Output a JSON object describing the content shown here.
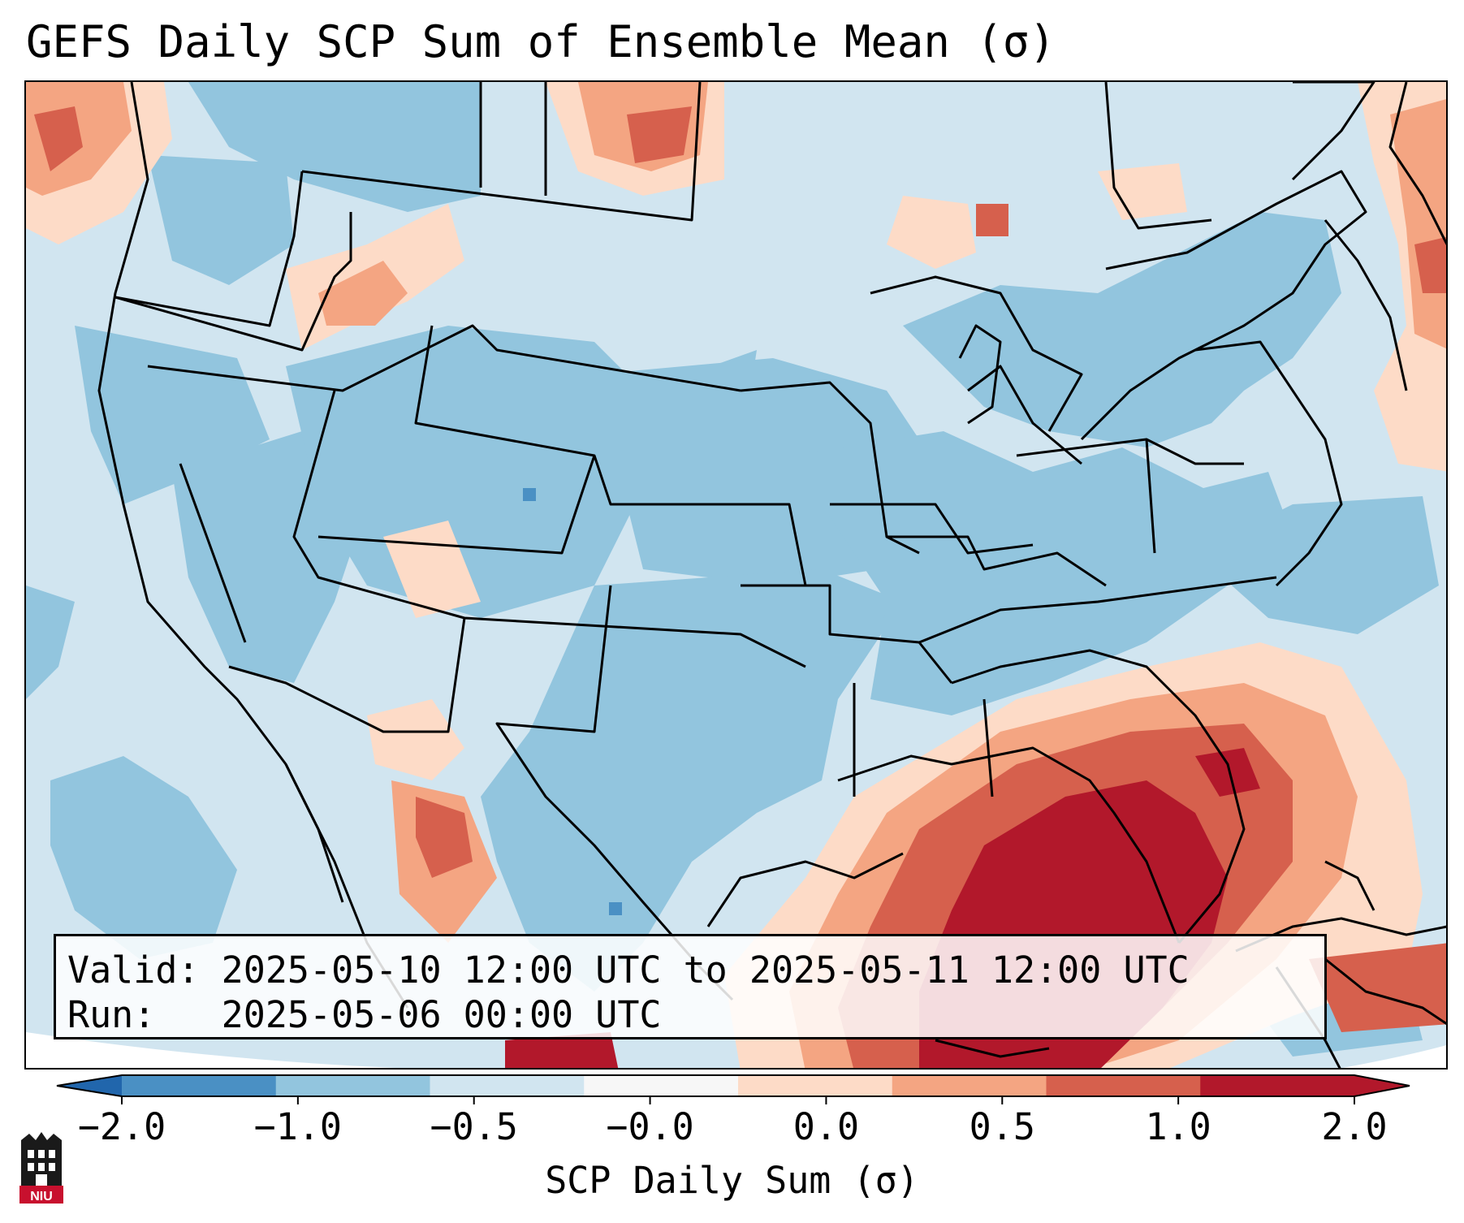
{
  "title": "GEFS Daily SCP Sum of Ensemble Mean (σ)",
  "info": {
    "valid_label": "Valid:",
    "valid_value": "2025-05-10 12:00 UTC to 2025-05-11 12:00 UTC",
    "run_label": "Run:",
    "run_value": "2025-05-06 00:00 UTC"
  },
  "colorbar": {
    "label": "SCP Daily Sum (σ)",
    "ticks": [
      "−2.0",
      "−1.0",
      "−0.5",
      "−0.0",
      "0.0",
      "0.5",
      "1.0",
      "2.0"
    ],
    "colors": [
      "#4a90c4",
      "#92c5de",
      "#d1e5f0",
      "#f7f7f7",
      "#fddbc7",
      "#f4a582",
      "#d6604d",
      "#b2182b"
    ],
    "extend_low_color": "#2166ac",
    "extend_high_color": "#b2182b"
  },
  "logo": {
    "icon": "niu-logo-icon",
    "text": "NIU",
    "color": "#c8102e"
  }
}
